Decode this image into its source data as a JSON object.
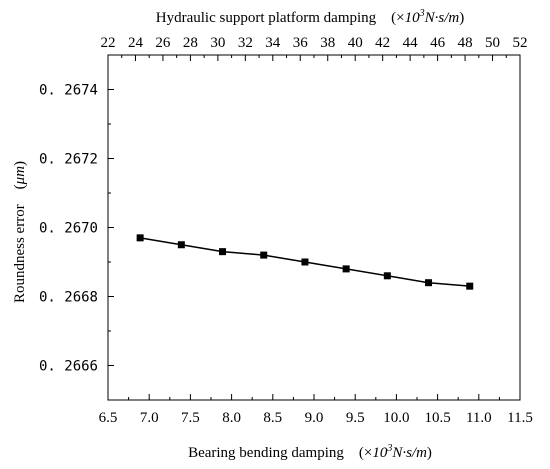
{
  "chart_data": {
    "type": "line",
    "title": "",
    "xlabel_bottom": {
      "prefix": "Bearing bending damping　(×",
      "base": "10",
      "exp": "3",
      "unit": "N·s/m",
      "suffix": ")"
    },
    "xlabel_top": {
      "prefix": "Hydraulic support platform damping　(×",
      "base": "10",
      "exp": "3",
      "unit": "N·s/m",
      "suffix": ")"
    },
    "ylabel": {
      "prefix": "Roundness error　(",
      "unit": "μm",
      "suffix": ")"
    },
    "xlim": [
      6.5,
      11.5
    ],
    "xlim_top": [
      22,
      52
    ],
    "ylim": [
      0.2665,
      0.2675
    ],
    "x_ticks": [
      "6.5",
      "7.0",
      "7.5",
      "8.0",
      "8.5",
      "9.0",
      "9.5",
      "10.0",
      "10.5",
      "11.0",
      "11.5"
    ],
    "x_ticks_top": [
      "22",
      "24",
      "26",
      "28",
      "30",
      "32",
      "34",
      "36",
      "38",
      "40",
      "42",
      "44",
      "46",
      "48",
      "50",
      "52"
    ],
    "y_ticks": [
      "0. 2666",
      "0. 2668",
      "0. 2670",
      "0. 2672",
      "0. 2674"
    ],
    "grid": false,
    "marker": "square",
    "line_color": "#000000",
    "series": [
      {
        "x": [
          6.89,
          7.39,
          7.89,
          8.39,
          8.89,
          9.39,
          9.89,
          10.39,
          10.89
        ],
        "values": [
          0.26697,
          0.26695,
          0.26693,
          0.26692,
          0.2669,
          0.26688,
          0.26686,
          0.26684,
          0.26683
        ]
      }
    ]
  }
}
